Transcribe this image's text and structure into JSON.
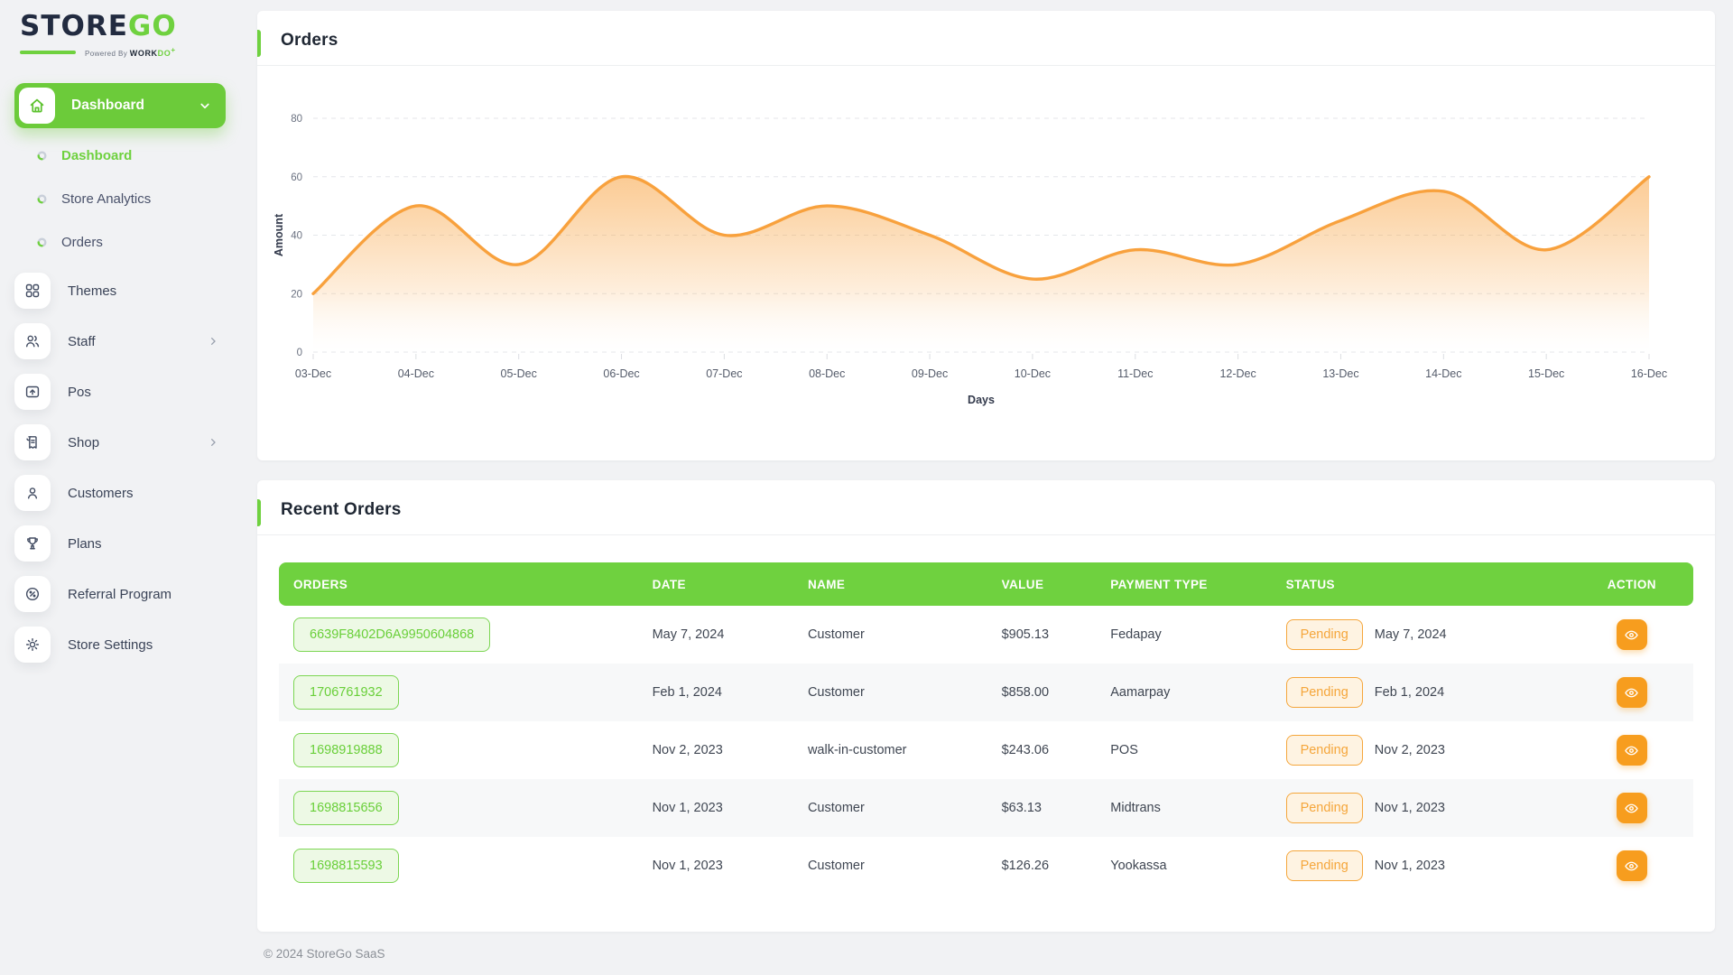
{
  "brand": {
    "logo_part1": "STORE",
    "logo_part2": "GO",
    "powered_prefix": "Powered By",
    "powered_brand1": "WORK",
    "powered_brand2": "DO"
  },
  "sidebar": {
    "active_group": {
      "label": "Dashboard"
    },
    "sub_items": [
      {
        "label": "Dashboard",
        "active": true
      },
      {
        "label": "Store Analytics",
        "active": false
      },
      {
        "label": "Orders",
        "active": false
      }
    ],
    "items": [
      {
        "label": "Themes",
        "icon": "themes-grid-icon",
        "chevron": false
      },
      {
        "label": "Staff",
        "icon": "staff-users-icon",
        "chevron": true
      },
      {
        "label": "Pos",
        "icon": "pos-monitor-icon",
        "chevron": false
      },
      {
        "label": "Shop",
        "icon": "shop-receipt-icon",
        "chevron": true
      },
      {
        "label": "Customers",
        "icon": "customers-person-icon",
        "chevron": false
      },
      {
        "label": "Plans",
        "icon": "plans-trophy-icon",
        "chevron": false
      },
      {
        "label": "Referral Program",
        "icon": "referral-percent-icon",
        "chevron": false
      },
      {
        "label": "Store Settings",
        "icon": "settings-gear-icon",
        "chevron": false
      }
    ]
  },
  "orders_card": {
    "title": "Orders"
  },
  "chart_data": {
    "type": "area",
    "title": "Orders",
    "x": [
      "03-Dec",
      "04-Dec",
      "05-Dec",
      "06-Dec",
      "07-Dec",
      "08-Dec",
      "09-Dec",
      "10-Dec",
      "11-Dec",
      "12-Dec",
      "13-Dec",
      "14-Dec",
      "15-Dec",
      "16-Dec"
    ],
    "series": [
      {
        "name": "Orders",
        "values": [
          20,
          50,
          30,
          60,
          40,
          50,
          40,
          25,
          35,
          30,
          45,
          55,
          35,
          60
        ]
      }
    ],
    "xlabel": "Days",
    "ylabel": "Amount",
    "ylim": [
      0,
      80
    ],
    "yticks": [
      0,
      20,
      40,
      60,
      80
    ],
    "grid": "dashed-horizontal",
    "legend": "none",
    "line_color": "#f8a13d"
  },
  "recent_orders": {
    "title": "Recent Orders",
    "columns": [
      "ORDERS",
      "DATE",
      "NAME",
      "VALUE",
      "PAYMENT TYPE",
      "STATUS",
      "ACTION"
    ],
    "rows": [
      {
        "order_id": "6639F8402D6A9950604868",
        "date": "May 7, 2024",
        "name": "Customer",
        "value": "$905.13",
        "payment_type": "Fedapay",
        "status": "Pending",
        "status_date": "May 7, 2024"
      },
      {
        "order_id": "1706761932",
        "date": "Feb 1, 2024",
        "name": "Customer",
        "value": "$858.00",
        "payment_type": "Aamarpay",
        "status": "Pending",
        "status_date": "Feb 1, 2024"
      },
      {
        "order_id": "1698919888",
        "date": "Nov 2, 2023",
        "name": "walk-in-customer",
        "value": "$243.06",
        "payment_type": "POS",
        "status": "Pending",
        "status_date": "Nov 2, 2023"
      },
      {
        "order_id": "1698815656",
        "date": "Nov 1, 2023",
        "name": "Customer",
        "value": "$63.13",
        "payment_type": "Midtrans",
        "status": "Pending",
        "status_date": "Nov 1, 2023"
      },
      {
        "order_id": "1698815593",
        "date": "Nov 1, 2023",
        "name": "Customer",
        "value": "$126.26",
        "payment_type": "Yookassa",
        "status": "Pending",
        "status_date": "Nov 1, 2023"
      }
    ]
  },
  "footer": {
    "copyright": "© 2024 StoreGo SaaS"
  },
  "colors": {
    "green": "#6fd13f",
    "green_button": "#6ccb3a",
    "orange_line": "#f8a13d",
    "orange_badge": "#f5a63b",
    "orange_button": "#f79d1e",
    "dark": "#222b40"
  }
}
